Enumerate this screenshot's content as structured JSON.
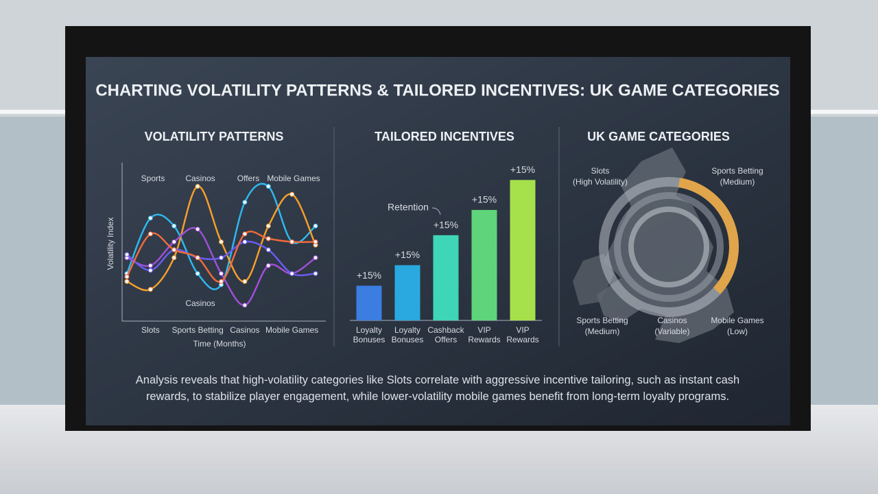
{
  "title": "CHARTING VOLATILITY PATTERNS & TAILORED INCENTIVES: UK GAME CATEGORIES",
  "caption": "Analysis reveals that high-volatility categories like Slots correlate with aggressive incentive tailoring, such as instant cash rewards, to stabilize player engagement, while lower-volatility mobile games benefit from long-term loyalty programs.",
  "chart_data": [
    {
      "type": "line",
      "title": "VOLATILITY PATTERNS",
      "y_label": "Volatility Index",
      "x_label": "Time (Months)",
      "categories": [
        null,
        "Slots",
        null,
        "Sports Betting",
        null,
        "Casinos",
        null,
        "Mobile Games",
        null
      ],
      "top_labels": [
        "Sports",
        "Casinos",
        "Offers",
        "Mobile Games"
      ],
      "bottom_label": "Casinos",
      "ylim": [
        0,
        10
      ],
      "series": [
        {
          "color": "#2fb8f0",
          "values": [
            3,
            6.5,
            6,
            3,
            2.3,
            7.5,
            8.5,
            5,
            6
          ]
        },
        {
          "color": "#f59e2b",
          "values": [
            2.5,
            2,
            4,
            8.5,
            5,
            2.5,
            6,
            8,
            4.8
          ]
        },
        {
          "color": "#a04fd8",
          "values": [
            4,
            3.5,
            5,
            5.8,
            3,
            1,
            3.5,
            3,
            4
          ]
        },
        {
          "color": "#6a5cf0",
          "values": [
            4.2,
            3.2,
            4.5,
            4,
            4,
            5,
            4.5,
            3,
            3
          ]
        },
        {
          "color": "#f26a3a",
          "values": [
            2.8,
            5.5,
            4.5,
            4,
            2.5,
            5.5,
            5.2,
            5,
            5
          ]
        }
      ]
    },
    {
      "type": "bar",
      "title": "TAILORED INCENTIVES",
      "categories": [
        "Loyalty Bonuses",
        "Loyalty Bonuses",
        "Cashback Offers",
        "VIP Rewards",
        "VIP Rewards"
      ],
      "values": [
        2.2,
        3.5,
        5.4,
        7,
        8.9
      ],
      "bar_labels": [
        "+15%",
        "+15%",
        "+15%",
        "+15%",
        "+15%"
      ],
      "colors": [
        "#3b7de0",
        "#2aa8e0",
        "#3fd6b8",
        "#5fd47a",
        "#a6e04a"
      ],
      "annotation": "Retention",
      "ylim": [
        0,
        10
      ]
    },
    {
      "type": "map",
      "title": "UK GAME CATEGORIES",
      "labels": [
        {
          "name": "Slots",
          "note": "(High Volatility)"
        },
        {
          "name": "Sports Betting",
          "note": "(Medium)"
        },
        {
          "name": "Sports Betting",
          "note": "(Medium)"
        },
        {
          "name": "Casinos",
          "note": "(Variable)"
        },
        {
          "name": "Mobile Games",
          "note": "(Low)"
        }
      ]
    }
  ]
}
